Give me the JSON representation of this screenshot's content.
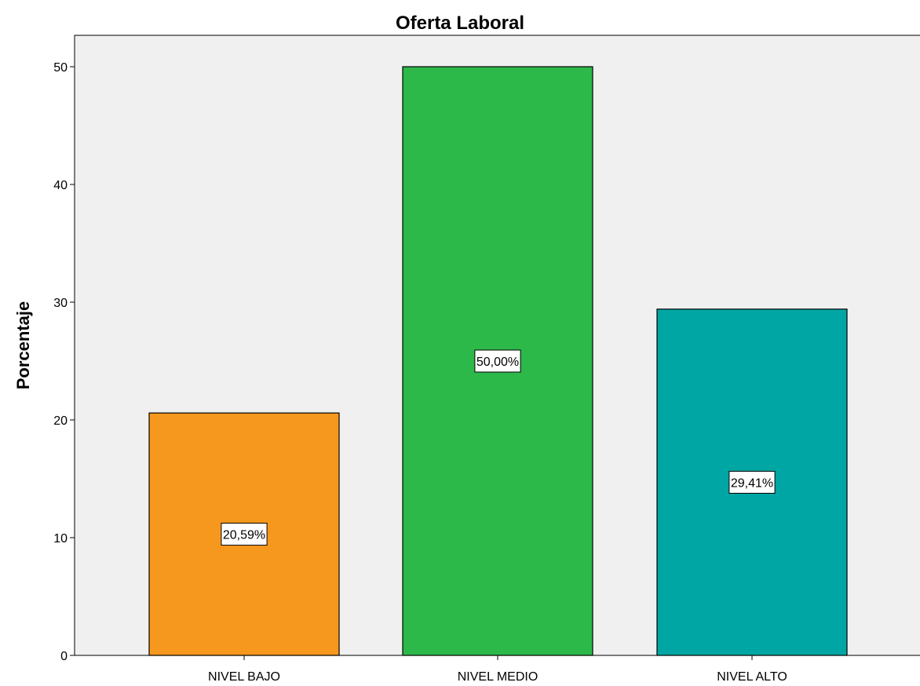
{
  "chart_data": {
    "type": "bar",
    "title": "Oferta Laboral",
    "xlabel": "",
    "ylabel": "Porcentaje",
    "categories": [
      "NIVEL BAJO",
      "NIVEL MEDIO",
      "NIVEL ALTO"
    ],
    "values": [
      20.59,
      50.0,
      29.41
    ],
    "data_labels": [
      "20,59%",
      "50,00%",
      "29,41%"
    ],
    "colors": [
      "#f7981e",
      "#2db84a",
      "#00a6a3"
    ],
    "ylim": [
      0,
      50
    ],
    "yticks": [
      0,
      10,
      20,
      30,
      40,
      50
    ],
    "ytick_labels": [
      "0",
      "10",
      "20",
      "30",
      "40",
      "50"
    ],
    "grid": false,
    "plot_background": "#f0f0f0"
  }
}
